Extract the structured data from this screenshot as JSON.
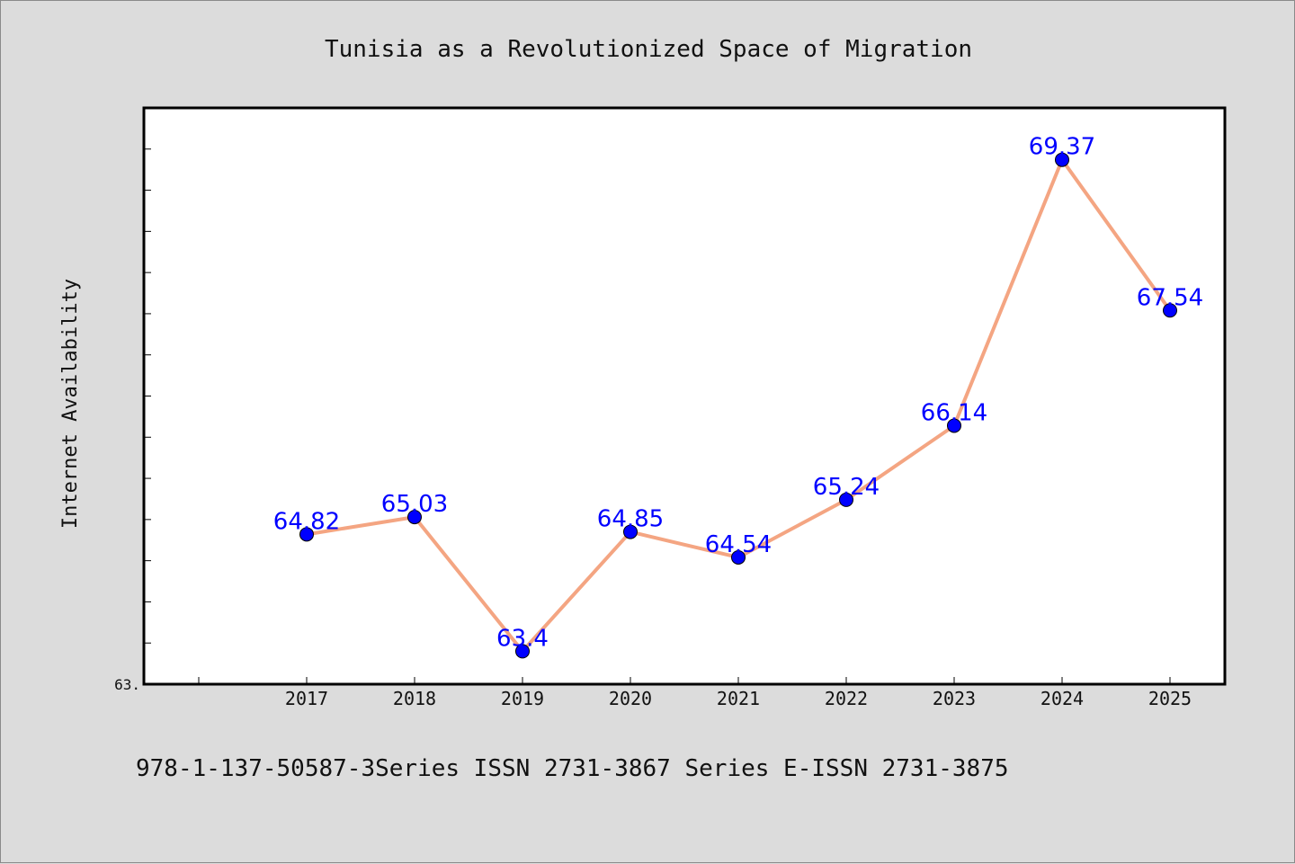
{
  "chart_data": {
    "type": "line",
    "title": "Tunisia as a Revolutionized Space of Migration",
    "xlabel": "",
    "ylabel": "Internet Availability",
    "categories": [
      "2017",
      "2018",
      "2019",
      "2020",
      "2021",
      "2022",
      "2023",
      "2024",
      "2025"
    ],
    "series": [
      {
        "values": [
          64.82,
          65.03,
          63.4,
          64.85,
          64.54,
          65.24,
          66.14,
          69.37,
          67.54
        ],
        "labels": [
          "64.82",
          "65.03",
          "63.4",
          "64.85",
          "64.54",
          "65.24",
          "66.14",
          "69.37",
          "67.54"
        ],
        "line_color": "#f4a582",
        "marker_color": "#0000ff"
      }
    ],
    "ylim": [
      63.0,
      70.0
    ],
    "ymin_label": "63.",
    "grid": false,
    "legend": "none"
  },
  "footer": {
    "text": "978-1-137-50587-3Series ISSN 2731-3867 Series E-ISSN 2731-3875"
  },
  "colors": {
    "background": "#dcdcdc",
    "plot_background": "#ffffff",
    "line": "#f4a582",
    "marker": "#0000ff",
    "label": "#0000ff"
  }
}
